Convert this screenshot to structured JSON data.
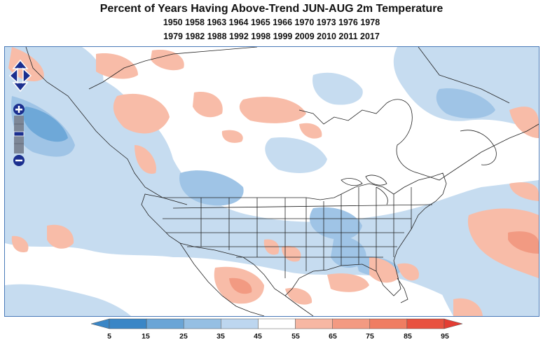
{
  "header": {
    "title": "Percent of Years Having Above-Trend JUN-AUG 2m Temperature",
    "years_line1": "1950 1958 1963 1964 1965 1966 1970 1973 1976 1978",
    "years_line2": "1979 1982 1988 1992 1998 1999 2009 2010 2011 2017"
  },
  "legend": {
    "ticks": [
      "5",
      "15",
      "25",
      "35",
      "45",
      "55",
      "65",
      "75",
      "85",
      "95"
    ],
    "colors": [
      "#3a86c6",
      "#6aa5d6",
      "#95bfe3",
      "#bdd6ef",
      "#ffffff",
      "#f7b7a3",
      "#f39a82",
      "#ef7d62",
      "#e8513f"
    ]
  },
  "colors": {
    "border": "#4a7ab8",
    "nav": "#1b2f8f"
  }
}
